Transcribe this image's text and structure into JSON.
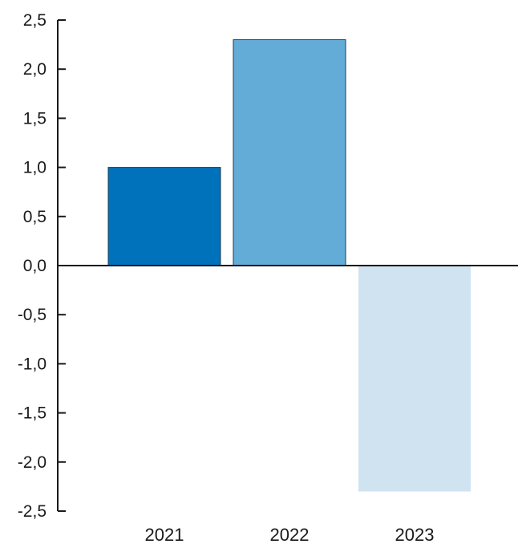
{
  "chart_data": {
    "type": "bar",
    "title": "",
    "xlabel": "",
    "ylabel": "",
    "categories": [
      "2021",
      "2022",
      "2023"
    ],
    "values": [
      1.0,
      2.3,
      -2.3
    ],
    "colors": [
      "#0072bc",
      "#63acd8",
      "#cfe3f1"
    ],
    "border_color": "#1f3a4d",
    "ylim": [
      -2.5,
      2.5
    ],
    "yticks": [
      2.5,
      2.0,
      1.5,
      1.0,
      0.5,
      0.0,
      -0.5,
      -1.0,
      -1.5,
      -2.0,
      -2.5
    ],
    "ytick_labels": [
      "2,5",
      "2,0",
      "1,5",
      "1,0",
      "0,5",
      "0,0",
      "-0,5",
      "-1,0",
      "-1,5",
      "-2,0",
      "-2,5"
    ],
    "grid": false,
    "legend": "none"
  }
}
